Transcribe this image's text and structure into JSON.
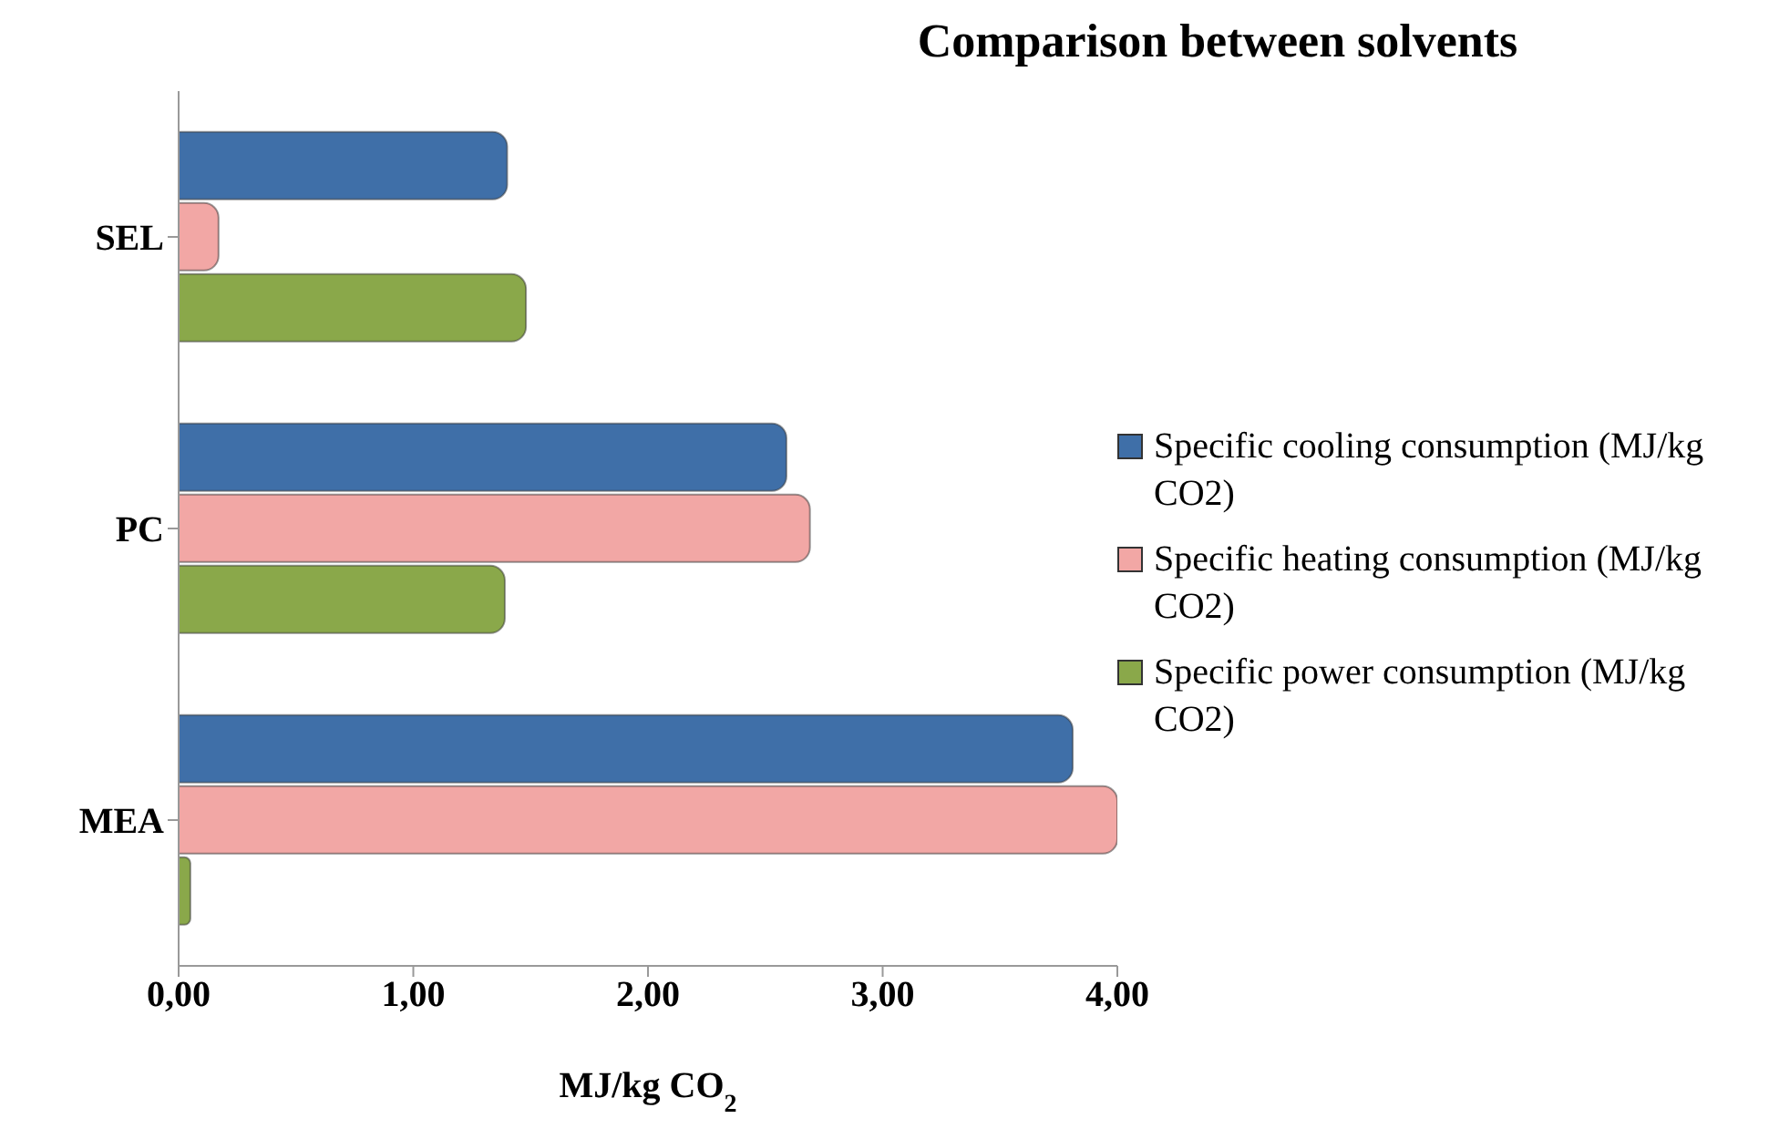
{
  "chart_data": {
    "type": "bar",
    "orientation": "horizontal",
    "title": "Comparison between solvents",
    "xlabel": "MJ/kg CO$_{2}$",
    "categories": [
      "SEL",
      "PC",
      "MEA"
    ],
    "series": [
      {
        "name": "Specific cooling consumption (MJ/kg CO2)",
        "color": "#3f6fa8",
        "values": [
          1.4,
          2.59,
          3.81
        ]
      },
      {
        "name": "Specific heating consumption (MJ/kg CO2)",
        "color": "#f2a7a5",
        "values": [
          0.17,
          2.69,
          4.0
        ]
      },
      {
        "name": "Specific power consumption (MJ/kg CO2)",
        "color": "#8aa84a",
        "values": [
          1.48,
          1.39,
          0.05
        ]
      }
    ],
    "xlim": [
      0,
      4
    ],
    "xticks": [
      {
        "value": 0,
        "label": "0,00"
      },
      {
        "value": 1,
        "label": "1,00"
      },
      {
        "value": 2,
        "label": "2,00"
      },
      {
        "value": 3,
        "label": "3,00"
      },
      {
        "value": 4,
        "label": "4,00"
      }
    ],
    "grid": false,
    "legend": "right"
  }
}
